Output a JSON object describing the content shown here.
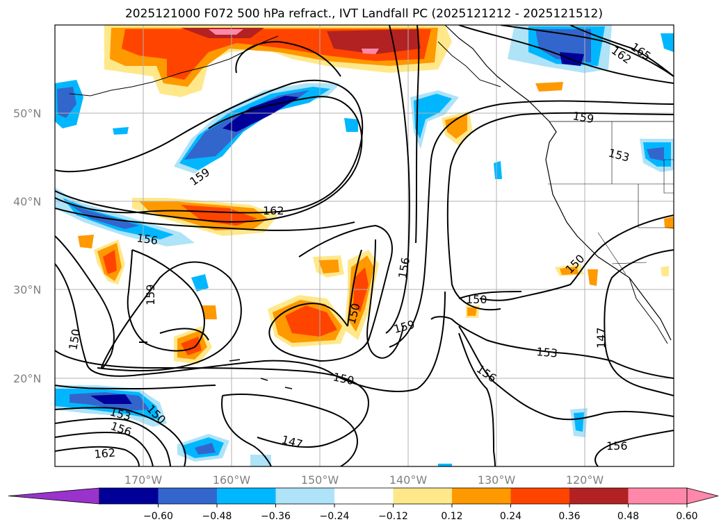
{
  "title": "2025121000 F072 500 hPa refract., IVT Landfall PC (2025121212 - 2025121512)",
  "map": {
    "lat_ticks": [
      "50°N",
      "40°N",
      "30°N",
      "20°N"
    ],
    "lon_ticks": [
      "170°W",
      "160°W",
      "150°W",
      "140°W",
      "130°W",
      "120°W"
    ],
    "contour_labels": [
      "165",
      "162",
      "162",
      "159",
      "159",
      "159",
      "159",
      "156",
      "156",
      "156",
      "156",
      "156",
      "153",
      "153",
      "153",
      "150",
      "150",
      "150",
      "150",
      "150",
      "150",
      "150",
      "147",
      "147",
      "162"
    ]
  },
  "colorbar": {
    "ticks": [
      "−0.60",
      "−0.48",
      "−0.36",
      "−0.24",
      "−0.12",
      "0.12",
      "0.24",
      "0.36",
      "0.48",
      "0.60"
    ],
    "colors": [
      "#9933cc",
      "#000099",
      "#3366cc",
      "#00b7ff",
      "#aee3f8",
      "#ffffff",
      "#ffe88a",
      "#ff9900",
      "#ff4400",
      "#b22222",
      "#ff88aa",
      "#ff88aa"
    ]
  }
}
